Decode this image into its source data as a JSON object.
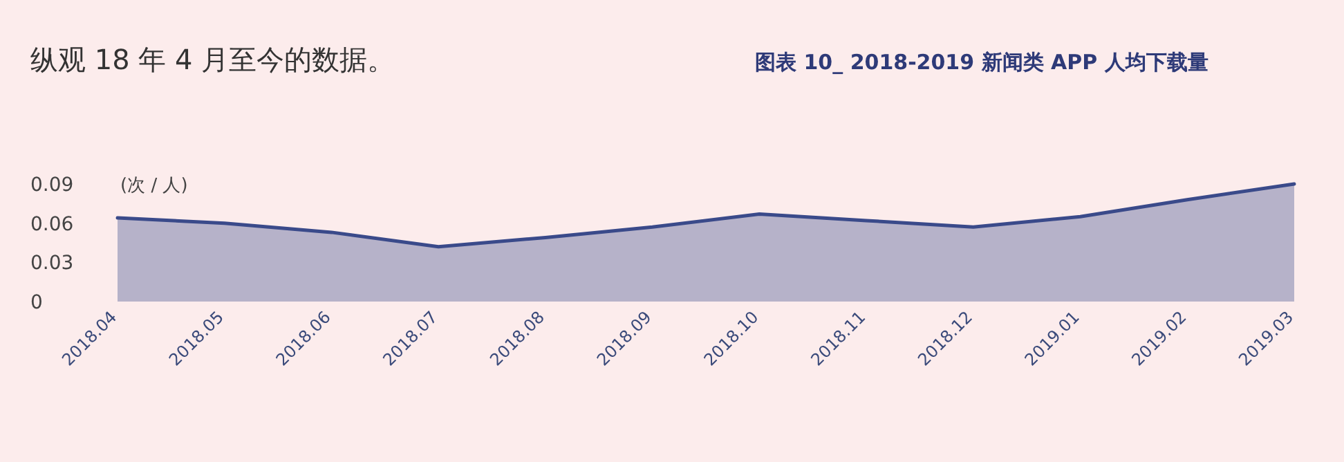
{
  "chart_data": {
    "type": "area",
    "title": "纵观 18 年 4 月至今的数据。",
    "subtitle": "图表 10_ 2018-2019 新闻类 APP 人均下载量",
    "ylabel": "(次 / 人)",
    "categories": [
      "2018.04",
      "2018.05",
      "2018.06",
      "2018.07",
      "2018.08",
      "2018.09",
      "2018.10",
      "2018.11",
      "2018.12",
      "2019.01",
      "2019.02",
      "2019.03"
    ],
    "series": [
      {
        "color": "#3a4a8a",
        "values": [
          0.064,
          0.06,
          0.053,
          0.042,
          0.049,
          0.057,
          0.067,
          0.062,
          0.057,
          0.065,
          0.078,
          0.09
        ]
      }
    ],
    "ylim": [
      0,
      0.09
    ],
    "yticks": [
      0,
      0.03,
      0.06,
      0.09
    ],
    "grid": false
  }
}
